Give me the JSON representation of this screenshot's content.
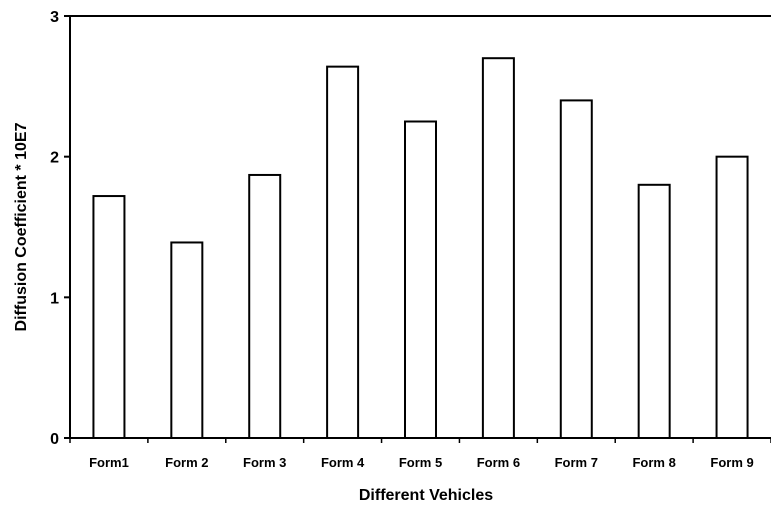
{
  "chart_data": {
    "type": "bar",
    "title": "",
    "xlabel": "Different Vehicles",
    "ylabel": "Diffusion Coefficient * 10E7",
    "categories": [
      "Form1",
      "Form 2",
      "Form 3",
      "Form 4",
      "Form 5",
      "Form 6",
      "Form 7",
      "Form 8",
      "Form 9"
    ],
    "values": [
      1.72,
      1.39,
      1.87,
      2.64,
      2.25,
      2.7,
      2.4,
      1.8,
      2.0
    ],
    "ylim": [
      0,
      3
    ],
    "yticks": [
      "0",
      "1",
      "2",
      "3"
    ],
    "grid": false,
    "legend": "none",
    "colors": {
      "bar_fill": "#ffffff",
      "bar_stroke": "#000000",
      "axis": "#000000"
    }
  }
}
